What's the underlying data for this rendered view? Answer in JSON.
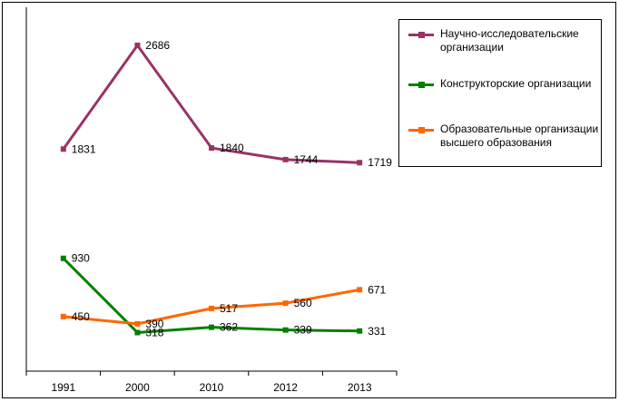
{
  "chart_data": {
    "type": "line",
    "categories": [
      "1991",
      "2000",
      "2010",
      "2012",
      "2013"
    ],
    "ylim": [
      0,
      3000
    ],
    "grid": false,
    "legend_position": "top-right",
    "series": [
      {
        "name": "Научно-исследовательские организации",
        "color": "#993366",
        "values": [
          1831,
          2686,
          1840,
          1744,
          1719
        ]
      },
      {
        "name": "Конструкторские организации",
        "color": "#008000",
        "values": [
          930,
          318,
          362,
          339,
          331
        ]
      },
      {
        "name": "Образовательные организации высшего образования",
        "color": "#ff6600",
        "values": [
          450,
          390,
          517,
          560,
          671
        ]
      }
    ]
  }
}
